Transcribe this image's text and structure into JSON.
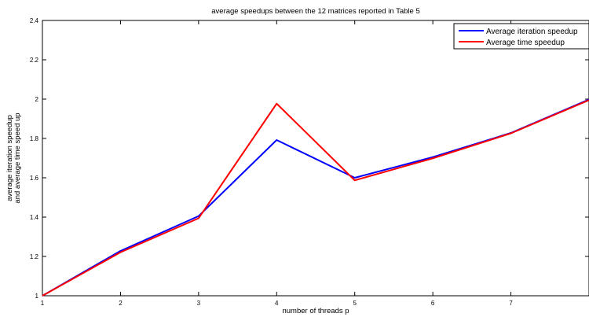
{
  "chart_data": {
    "type": "line",
    "title": "average speedups between the 12 matrices reported in Table 5",
    "xlabel": "number of threads p",
    "ylabel_lines": [
      "average iteration speedup",
      "and average time speed up"
    ],
    "xlim": [
      1,
      8
    ],
    "ylim": [
      1,
      2.4
    ],
    "x_ticks": [
      1,
      2,
      3,
      4,
      5,
      6,
      7
    ],
    "x_tick_labels": [
      "1",
      "2",
      "3",
      "4",
      "5",
      "6",
      "7"
    ],
    "y_ticks": [
      1,
      1.2,
      1.4,
      1.6,
      1.8,
      2,
      2.2,
      2.4
    ],
    "y_tick_labels": [
      "1",
      "1.2",
      "1.4",
      "1.6",
      "1.8",
      "2",
      "2.2",
      "2.4"
    ],
    "grid": false,
    "legend_position": "top-right",
    "x": [
      1,
      2,
      3,
      4,
      5,
      6,
      7,
      8
    ],
    "series": [
      {
        "name": "Average iteration speedup",
        "color": "#0000ff",
        "values": [
          1.0,
          1.228,
          1.405,
          1.792,
          1.6,
          1.705,
          1.828,
          1.998
        ]
      },
      {
        "name": "Average time speedup",
        "color": "#ff0000",
        "values": [
          1.0,
          1.221,
          1.394,
          1.977,
          1.587,
          1.699,
          1.826,
          1.995
        ]
      }
    ]
  }
}
